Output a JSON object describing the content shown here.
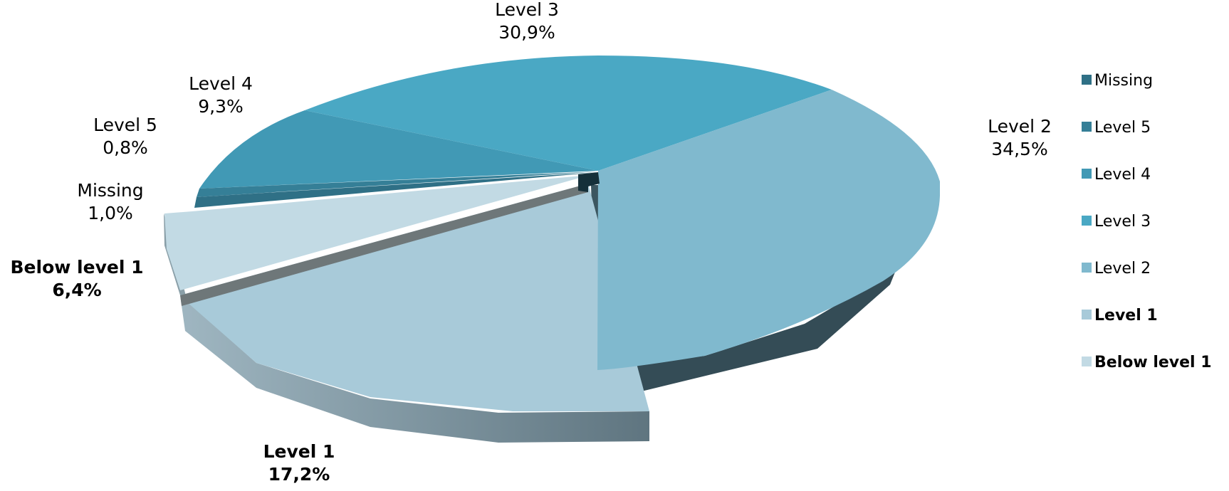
{
  "chart_data": {
    "type": "pie",
    "title": "",
    "legend_position": "right",
    "slices": [
      {
        "label": "Missing",
        "value_text": "1,0%",
        "value": 1.0,
        "color": "#2f7086",
        "bold": false
      },
      {
        "label": "Level 5",
        "value_text": "0,8%",
        "value": 0.8,
        "color": "#357f97",
        "bold": false
      },
      {
        "label": "Level 4",
        "value_text": "9,3%",
        "value": 9.3,
        "color": "#4199b5",
        "bold": false
      },
      {
        "label": "Level 3",
        "value_text": "30,9%",
        "value": 30.9,
        "color": "#4aa8c4",
        "bold": false
      },
      {
        "label": "Level 2",
        "value_text": "34,5%",
        "value": 34.5,
        "color": "#80b9ce",
        "bold": false
      },
      {
        "label": "Level 1",
        "value_text": "17,2%",
        "value": 17.2,
        "color": "#a8cad9",
        "bold": true
      },
      {
        "label": "Below level 1",
        "value_text": "6,4%",
        "value": 6.4,
        "color": "#c2dae4",
        "bold": true
      }
    ]
  }
}
